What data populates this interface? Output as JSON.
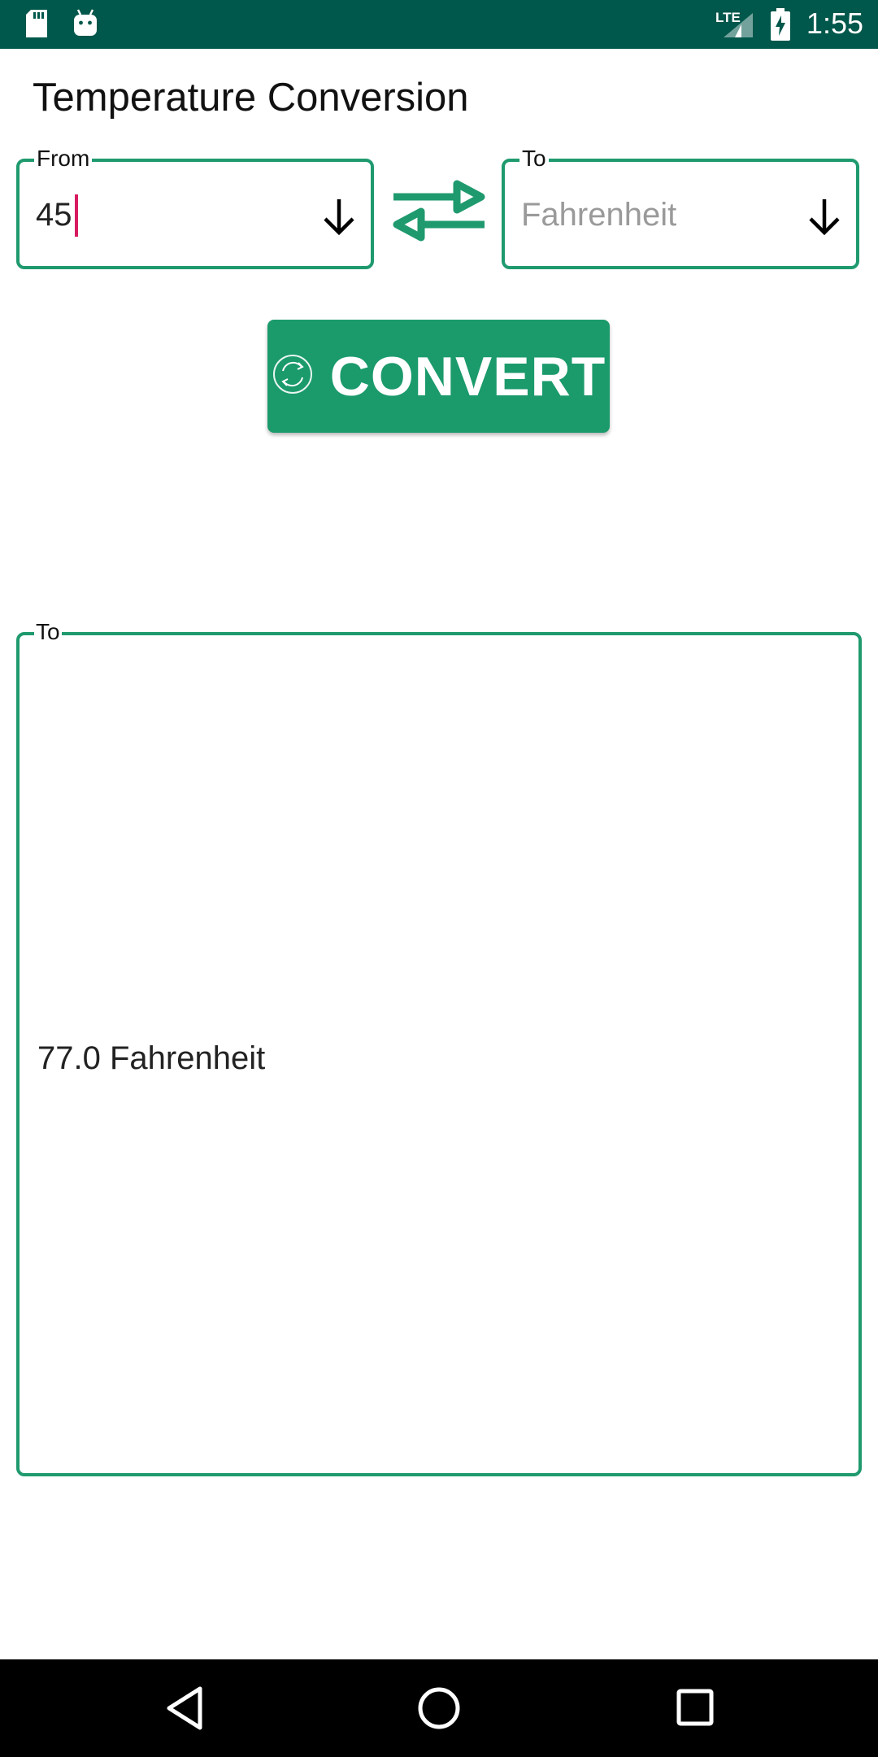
{
  "status_bar": {
    "time": "1:55",
    "network_label": "LTE",
    "icons": [
      "sd-card-icon",
      "android-icon",
      "signal-icon",
      "battery-charging-icon"
    ]
  },
  "page": {
    "title": "Temperature Conversion"
  },
  "from_field": {
    "label": "From",
    "value": "45"
  },
  "to_field": {
    "label": "To",
    "placeholder": "Fahrenheit"
  },
  "convert_button": {
    "label": "CONVERT"
  },
  "result": {
    "label": "To",
    "text": "77.0 Fahrenheit"
  },
  "colors": {
    "status_bar": "#00574b",
    "accent": "#1b9a6c",
    "cursor": "#d81b60"
  }
}
